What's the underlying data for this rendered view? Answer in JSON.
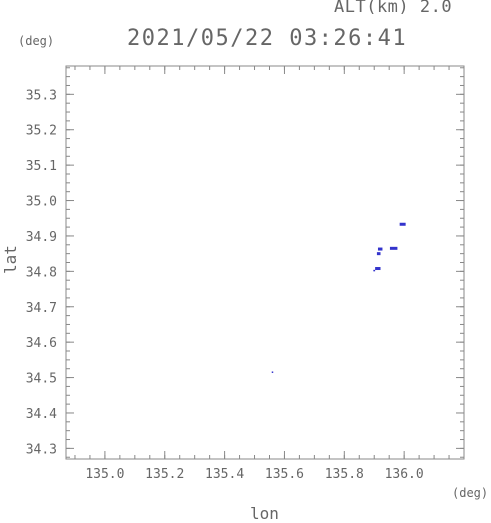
{
  "header": {
    "alt_label": "ALT(km) 2.0",
    "timestamp": "2021/05/22 03:26:41"
  },
  "chart_data": {
    "type": "scatter",
    "xlabel": "lon",
    "ylabel": "lat",
    "x_unit": "(deg)",
    "y_unit": "(deg)",
    "xlim": [
      134.87,
      136.2
    ],
    "ylim": [
      34.27,
      35.38
    ],
    "xticks": [
      135.0,
      135.2,
      135.4,
      135.6,
      135.8,
      136.0
    ],
    "yticks": [
      34.3,
      34.4,
      34.5,
      34.6,
      34.7,
      34.8,
      34.9,
      35.0,
      35.1,
      35.2,
      35.3
    ],
    "xtick_labels": [
      "135.0",
      "135.2",
      "135.4",
      "135.6",
      "135.8",
      "136.0"
    ],
    "ytick_labels": [
      "34.3",
      "34.4",
      "34.5",
      "34.6",
      "34.7",
      "34.8",
      "34.9",
      "35.0",
      "35.1",
      "35.2",
      "35.3"
    ],
    "grid": false,
    "marker_color": "#3333cc",
    "points": [
      {
        "x": 135.995,
        "y": 34.933,
        "w": 0.02
      },
      {
        "x": 135.92,
        "y": 34.863,
        "w": 0.015
      },
      {
        "x": 135.965,
        "y": 34.865,
        "w": 0.025
      },
      {
        "x": 135.915,
        "y": 34.85,
        "w": 0.012
      },
      {
        "x": 135.912,
        "y": 34.808,
        "w": 0.018
      },
      {
        "x": 135.9,
        "y": 34.8,
        "w": 0.006
      },
      {
        "x": 135.56,
        "y": 34.513,
        "w": 0.004
      }
    ]
  },
  "colors": {
    "axis": "#888888",
    "text": "#666666",
    "marker": "#3333cc"
  }
}
